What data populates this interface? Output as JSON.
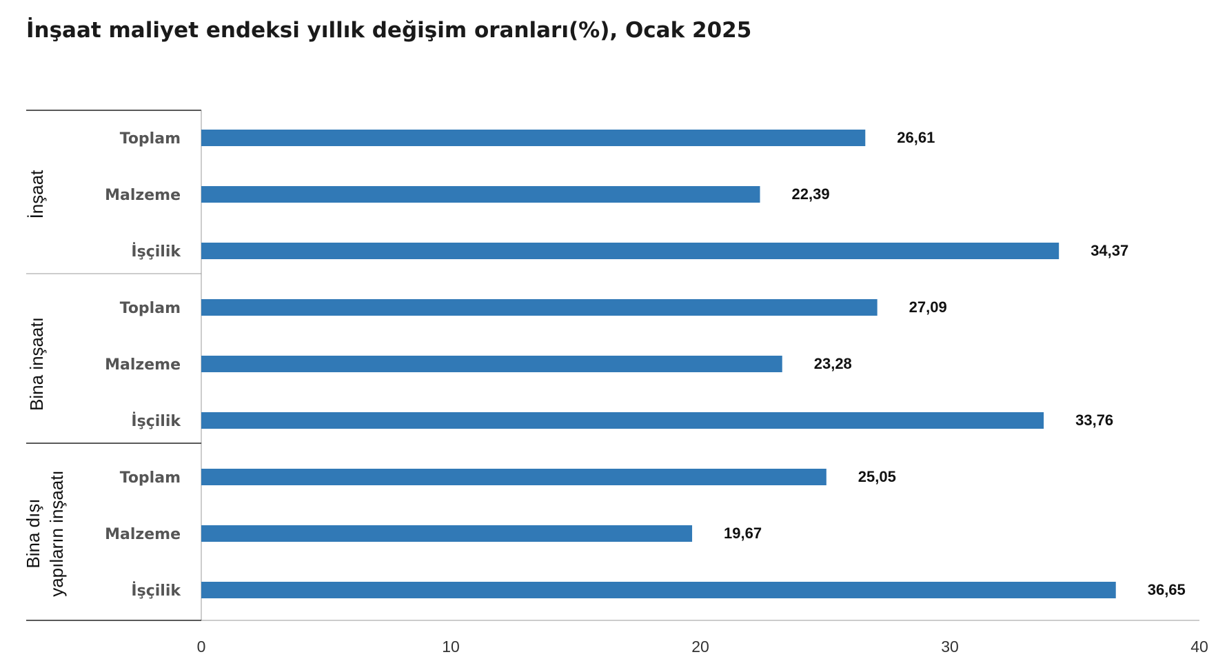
{
  "title": "İnşaat maliyet endeksi yıllık değişim oranları(%), Ocak 2025",
  "colors": {
    "bar": "#3179b6",
    "axis": "#222222",
    "divider": "#999999"
  },
  "chart_data": {
    "type": "bar",
    "orientation": "horizontal",
    "title": "İnşaat maliyet endeksi yıllık değişim oranları(%), Ocak 2025",
    "xlim": [
      0,
      40
    ],
    "xticks": [
      0,
      10,
      20,
      30,
      40
    ],
    "grid": false,
    "groups": [
      {
        "name": "İnşaat",
        "lines": [
          "İnşaat"
        ],
        "items": [
          {
            "category": "Toplam",
            "value": 26.61,
            "label": "26,61"
          },
          {
            "category": "Malzeme",
            "value": 22.39,
            "label": "22,39"
          },
          {
            "category": "İşçilik",
            "value": 34.37,
            "label": "34,37"
          }
        ]
      },
      {
        "name": "Bina inşaatı",
        "lines": [
          "Bina inşaatı"
        ],
        "items": [
          {
            "category": "Toplam",
            "value": 27.09,
            "label": "27,09"
          },
          {
            "category": "Malzeme",
            "value": 23.28,
            "label": "23,28"
          },
          {
            "category": "İşçilik",
            "value": 33.76,
            "label": "33,76"
          }
        ]
      },
      {
        "name": "Bina dışı yapıların inşaatı",
        "lines": [
          "Bina dışı",
          "yapıların inşaatı"
        ],
        "items": [
          {
            "category": "Toplam",
            "value": 25.05,
            "label": "25,05"
          },
          {
            "category": "Malzeme",
            "value": 19.67,
            "label": "19,67"
          },
          {
            "category": "İşçilik",
            "value": 36.65,
            "label": "36,65"
          }
        ]
      }
    ]
  }
}
